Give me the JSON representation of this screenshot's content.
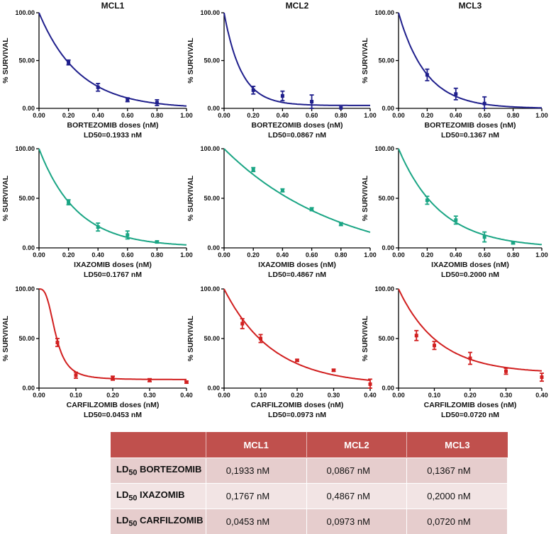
{
  "colors": {
    "bortezomib": "#1f1f8c",
    "ixazomib": "#1aa584",
    "carfilzomib": "#d11f1f",
    "table_header": "#c0504d",
    "table_row_odd": "#e6cdcd",
    "table_row_even": "#f2e4e4"
  },
  "column_titles": [
    "MCL1",
    "MCL2",
    "MCL3"
  ],
  "chart_data": [
    {
      "type": "scatter",
      "title": "MCL1",
      "drug": "bortezomib",
      "ylabel": "% SURVIVAL",
      "xlabel": "BORTEZOMIB doses (nM)",
      "ld50_label": "LD50=0.1933 nM",
      "xlim": [
        0,
        1
      ],
      "ylim": [
        0,
        100
      ],
      "xticks": [
        "0.00",
        "0.20",
        "0.40",
        "0.60",
        "0.80",
        "1.00"
      ],
      "yticks": [
        "0.00",
        "50.00",
        "100.00"
      ],
      "points": [
        {
          "x": 0.2,
          "y": 48,
          "err": 2.5
        },
        {
          "x": 0.4,
          "y": 22,
          "err": 4
        },
        {
          "x": 0.6,
          "y": 9,
          "err": 2
        },
        {
          "x": 0.8,
          "y": 6,
          "err": 3
        }
      ],
      "fit": {
        "model": "exp_decay",
        "y0": 100,
        "k": 3.7,
        "plateau": 0
      }
    },
    {
      "type": "scatter",
      "title": "MCL2",
      "drug": "bortezomib",
      "ylabel": "% SURVIVAL",
      "xlabel": "BORTEZOMIB doses (nM)",
      "ld50_label": "LD50=0.0867 nM",
      "xlim": [
        0,
        1
      ],
      "ylim": [
        0,
        100
      ],
      "xticks": [
        "0.00",
        "0.20",
        "0.40",
        "0.60",
        "0.80",
        "1.00"
      ],
      "yticks": [
        "0.00",
        "50.00",
        "100.00"
      ],
      "points": [
        {
          "x": 0.2,
          "y": 19,
          "err": 4
        },
        {
          "x": 0.4,
          "y": 13,
          "err": 5
        },
        {
          "x": 0.6,
          "y": 7,
          "err": 7
        },
        {
          "x": 0.8,
          "y": 0.5,
          "err": 0
        }
      ],
      "fit": {
        "model": "exp_decay",
        "y0": 100,
        "k": 8.5,
        "plateau": 3
      }
    },
    {
      "type": "scatter",
      "title": "MCL3",
      "drug": "bortezomib",
      "ylabel": "% SURVIVAL",
      "xlabel": "BORTEZOMIB doses (nM)",
      "ld50_label": "LD50=0.1367 nM",
      "xlim": [
        0,
        1
      ],
      "ylim": [
        0,
        100
      ],
      "xticks": [
        "0.00",
        "0.20",
        "0.40",
        "0.60",
        "0.80",
        "1.00"
      ],
      "yticks": [
        "0.00",
        "50.00",
        "100.00"
      ],
      "points": [
        {
          "x": 0.2,
          "y": 35,
          "err": 6
        },
        {
          "x": 0.4,
          "y": 15,
          "err": 6
        },
        {
          "x": 0.6,
          "y": 5,
          "err": 7
        }
      ],
      "fit": {
        "model": "exp_decay",
        "y0": 100,
        "k": 5.2,
        "plateau": 0
      }
    },
    {
      "type": "scatter",
      "title": "",
      "drug": "ixazomib",
      "ylabel": "% SURVIVAL",
      "xlabel": "IXAZOMIB doses (nM)",
      "ld50_label": "LD50=0.1767 nM",
      "xlim": [
        0,
        1
      ],
      "ylim": [
        0,
        100
      ],
      "xticks": [
        "0.00",
        "0.20",
        "0.40",
        "0.60",
        "0.80",
        "1.00"
      ],
      "yticks": [
        "0.00",
        "50.00",
        "100.00"
      ],
      "points": [
        {
          "x": 0.2,
          "y": 46,
          "err": 2.5
        },
        {
          "x": 0.4,
          "y": 21,
          "err": 4
        },
        {
          "x": 0.6,
          "y": 13,
          "err": 4
        },
        {
          "x": 0.8,
          "y": 6,
          "err": 1
        }
      ],
      "fit": {
        "model": "exp_decay",
        "y0": 100,
        "k": 3.9,
        "plateau": 1
      }
    },
    {
      "type": "scatter",
      "title": "",
      "drug": "ixazomib",
      "ylabel": "% SURVIVAL",
      "xlabel": "IXAZOMIB doses (nM)",
      "ld50_label": "LD50=0.4867 nM",
      "xlim": [
        0,
        1
      ],
      "ylim": [
        0,
        100
      ],
      "xticks": [
        "0.00",
        "0.20",
        "0.40",
        "0.60",
        "0.80",
        "1.00"
      ],
      "yticks": [
        "0.00",
        "50.00",
        "100.00"
      ],
      "points": [
        {
          "x": 0.2,
          "y": 79,
          "err": 2
        },
        {
          "x": 0.4,
          "y": 58,
          "err": 1.5
        },
        {
          "x": 0.6,
          "y": 39,
          "err": 1.5
        },
        {
          "x": 0.8,
          "y": 24,
          "err": 1.5
        }
      ],
      "fit": {
        "model": "exp_decay",
        "y0": 100,
        "k": 1.25,
        "plateau": -18
      }
    },
    {
      "type": "scatter",
      "title": "",
      "drug": "ixazomib",
      "ylabel": "% SURVIVAL",
      "xlabel": "IXAZOMIB doses (nM)",
      "ld50_label": "LD50=0.2000 nM",
      "xlim": [
        0,
        1
      ],
      "ylim": [
        0,
        100
      ],
      "xticks": [
        "0.00",
        "0.20",
        "0.40",
        "0.60",
        "0.80",
        "1.00"
      ],
      "yticks": [
        "0.00",
        "50.00",
        "100.00"
      ],
      "points": [
        {
          "x": 0.2,
          "y": 48,
          "err": 4
        },
        {
          "x": 0.4,
          "y": 28,
          "err": 4
        },
        {
          "x": 0.6,
          "y": 11,
          "err": 5
        },
        {
          "x": 0.8,
          "y": 5,
          "err": 1
        }
      ],
      "fit": {
        "model": "exp_decay",
        "y0": 100,
        "k": 3.4,
        "plateau": 0
      }
    },
    {
      "type": "scatter",
      "title": "",
      "drug": "carfilzomib",
      "ylabel": "% SURVIVAL",
      "xlabel": "CARFILZOMIB doses (nM)",
      "ld50_label": "LD50=0.0453 nM",
      "xlim": [
        0,
        0.4
      ],
      "ylim": [
        0,
        100
      ],
      "xticks": [
        "0.00",
        "0.10",
        "0.20",
        "0.30",
        "0.40"
      ],
      "yticks": [
        "0.00",
        "50.00",
        "100.00"
      ],
      "points": [
        {
          "x": 0.05,
          "y": 46,
          "err": 4
        },
        {
          "x": 0.1,
          "y": 13,
          "err": 3
        },
        {
          "x": 0.2,
          "y": 10,
          "err": 2
        },
        {
          "x": 0.3,
          "y": 8,
          "err": 1.5
        },
        {
          "x": 0.4,
          "y": 6,
          "err": 1
        }
      ],
      "fit": {
        "model": "sigmoid",
        "top": 100,
        "bottom": 8.5,
        "ec50": 0.0453,
        "hill": 3.0
      }
    },
    {
      "type": "scatter",
      "title": "",
      "drug": "carfilzomib",
      "ylabel": "% SURVIVAL",
      "xlabel": "CARFILZOMIB doses (nM)",
      "ld50_label": "LD50=0.0973 nM",
      "xlim": [
        0,
        0.4
      ],
      "ylim": [
        0,
        100
      ],
      "xticks": [
        "0.00",
        "0.10",
        "0.20",
        "0.30",
        "0.40"
      ],
      "yticks": [
        "0.00",
        "50.00",
        "100.00"
      ],
      "points": [
        {
          "x": 0.05,
          "y": 65,
          "err": 5
        },
        {
          "x": 0.1,
          "y": 50,
          "err": 4
        },
        {
          "x": 0.2,
          "y": 28,
          "err": 1
        },
        {
          "x": 0.3,
          "y": 18,
          "err": 1
        },
        {
          "x": 0.4,
          "y": 4,
          "err": 5
        }
      ],
      "fit": {
        "model": "exp_decay",
        "y0": 100,
        "k": 7.5,
        "plateau": 3
      }
    },
    {
      "type": "scatter",
      "title": "",
      "drug": "carfilzomib",
      "ylabel": "% SURVIVAL",
      "xlabel": "CARFILZOMIB doses (nM)",
      "ld50_label": "LD50=0.0720 nM",
      "xlim": [
        0,
        0.4
      ],
      "ylim": [
        0,
        100
      ],
      "xticks": [
        "0.00",
        "0.10",
        "0.20",
        "0.30",
        "0.40"
      ],
      "yticks": [
        "0.00",
        "50.00",
        "100.00"
      ],
      "points": [
        {
          "x": 0.05,
          "y": 53,
          "err": 5
        },
        {
          "x": 0.1,
          "y": 43,
          "err": 4
        },
        {
          "x": 0.2,
          "y": 30,
          "err": 6
        },
        {
          "x": 0.3,
          "y": 17,
          "err": 3
        },
        {
          "x": 0.4,
          "y": 11,
          "err": 4
        }
      ],
      "fit": {
        "model": "exp_decay",
        "y0": 100,
        "k": 9.0,
        "plateau": 15
      }
    }
  ],
  "table": {
    "headers": [
      "",
      "MCL1",
      "MCL2",
      "MCL3"
    ],
    "rows": [
      {
        "ld": "LD",
        "sub": "50",
        "drug": "BORTEZOMIB",
        "values": [
          "0,1933 nM",
          "0,0867 nM",
          "0,1367 nM"
        ]
      },
      {
        "ld": "LD",
        "sub": "50",
        "drug": "IXAZOMIB",
        "values": [
          "0,1767 nM",
          "0,4867 nM",
          "0,2000 nM"
        ]
      },
      {
        "ld": "LD",
        "sub": "50",
        "drug": "CARFILZOMIB",
        "values": [
          "0,0453 nM",
          "0,0973 nM",
          "0,0720 nM"
        ]
      }
    ]
  }
}
